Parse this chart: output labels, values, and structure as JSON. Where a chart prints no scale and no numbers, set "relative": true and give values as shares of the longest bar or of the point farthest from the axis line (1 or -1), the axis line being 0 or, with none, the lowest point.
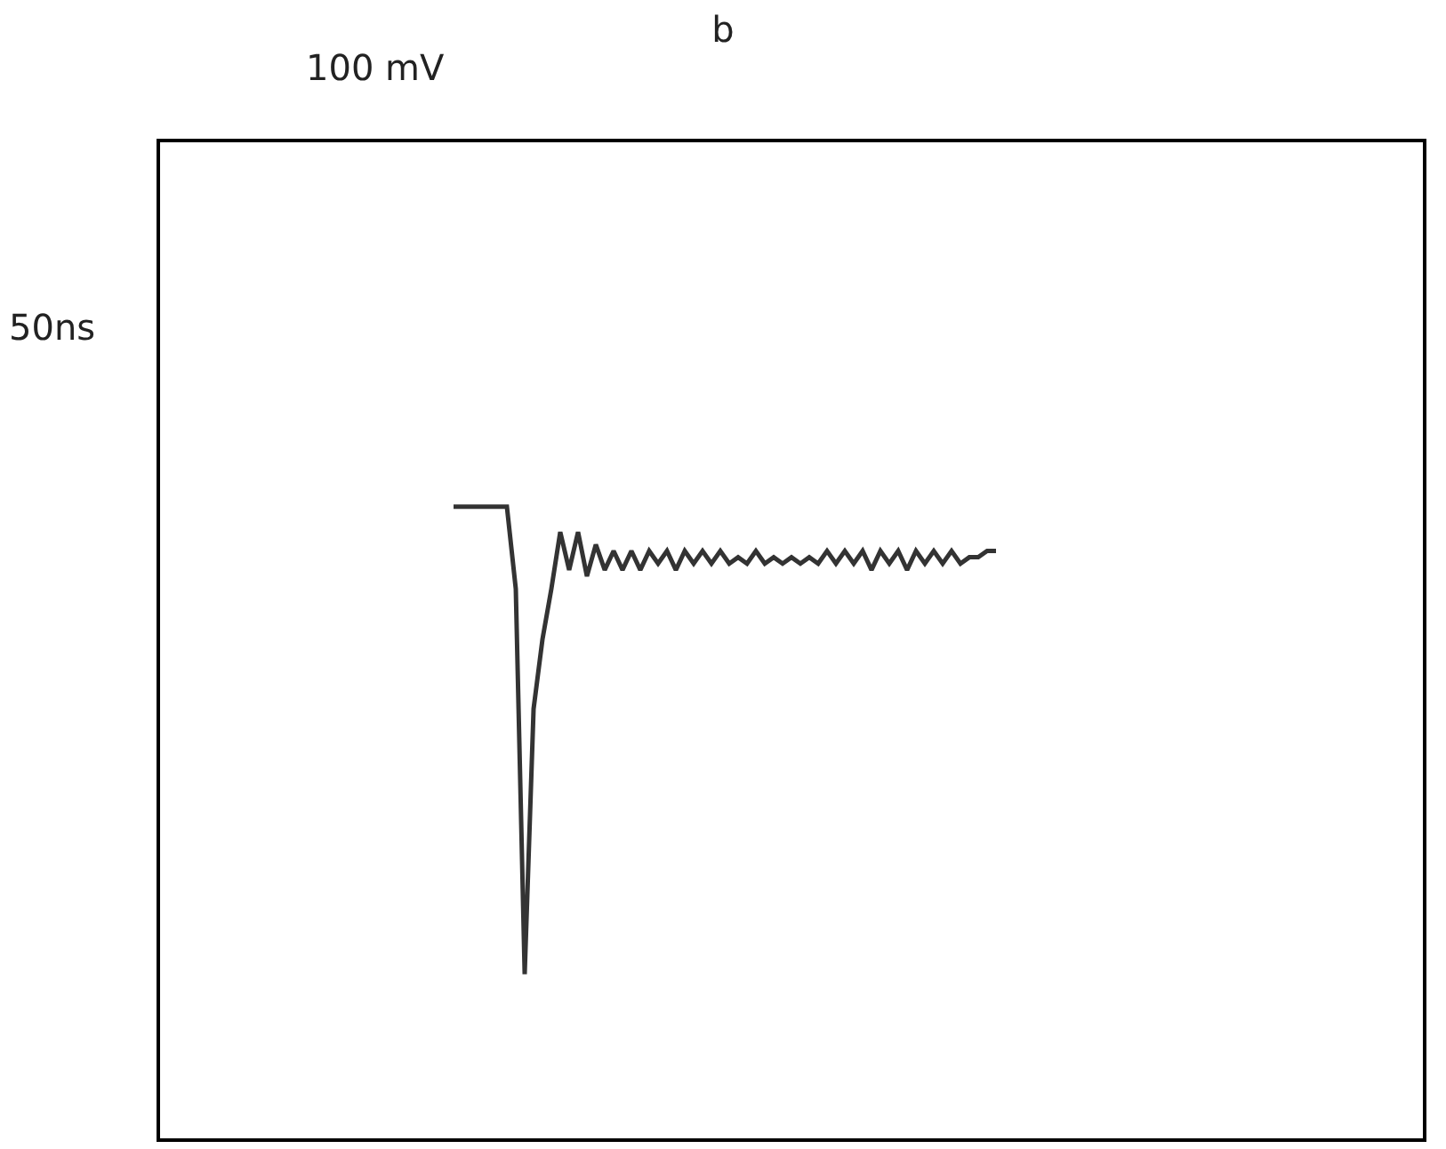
{
  "chart_data": {
    "type": "line",
    "relative": true,
    "title": "b",
    "annotations": [
      "100 mV",
      "50ns"
    ],
    "color": "#333333",
    "categories": [
      null,
      null,
      null,
      null,
      null,
      null,
      null,
      null,
      null,
      null,
      null,
      null,
      null,
      null,
      null,
      null,
      null,
      null,
      null,
      null,
      null,
      null,
      null,
      null,
      null,
      null,
      null,
      null,
      null,
      null,
      null,
      null,
      null,
      null,
      null,
      null,
      null,
      null,
      null,
      null,
      null,
      null,
      null,
      null,
      null,
      null,
      null,
      null,
      null,
      null,
      null,
      null,
      null,
      null,
      null,
      null,
      null,
      null,
      null,
      null,
      null,
      null,
      null,
      null,
      null,
      null,
      null,
      null,
      null,
      null,
      null,
      null,
      null,
      null,
      null,
      null,
      null,
      null,
      null,
      null,
      null,
      null,
      null,
      null,
      null,
      null,
      null,
      null,
      null,
      null,
      null,
      null,
      null,
      null,
      null,
      null,
      null,
      null,
      null,
      null,
      null,
      null,
      null,
      null,
      null,
      null,
      null,
      null,
      null,
      null,
      null,
      null,
      null,
      null,
      null,
      null,
      null,
      null,
      null,
      null,
      null,
      null,
      null,
      null,
      null,
      null,
      null,
      null,
      null,
      null,
      null,
      null,
      null,
      null,
      null,
      null,
      null,
      null,
      null,
      null,
      null,
      null,
      null
    ],
    "values": [
      null,
      null,
      null,
      null,
      null,
      null,
      null,
      null,
      null,
      null,
      null,
      null,
      null,
      null,
      null,
      null,
      null,
      null,
      null,
      null,
      null,
      null,
      null,
      null,
      null,
      null,
      null,
      null,
      null,
      null,
      null,
      null,
      null,
      1.0,
      1.0,
      1.0,
      1.0,
      1.0,
      1.0,
      1.0,
      0.87,
      0.26,
      0.68,
      0.79,
      0.87,
      0.96,
      0.9,
      0.96,
      0.89,
      0.94,
      0.9,
      0.93,
      0.9,
      0.93,
      0.9,
      0.93,
      0.91,
      0.93,
      0.9,
      0.93,
      0.91,
      0.93,
      0.91,
      0.93,
      0.91,
      0.92,
      0.91,
      0.93,
      0.91,
      0.92,
      0.91,
      0.92,
      0.91,
      0.92,
      0.91,
      0.93,
      0.91,
      0.93,
      0.91,
      0.93,
      0.9,
      0.93,
      0.91,
      0.93,
      0.9,
      0.93,
      0.91,
      0.93,
      0.91,
      0.93,
      0.91,
      0.92,
      0.92,
      0.93,
      0.93,
      null,
      null,
      null,
      null,
      null,
      null,
      null,
      null,
      null,
      null,
      null,
      null,
      null,
      null,
      null,
      null,
      null,
      null,
      null,
      null,
      null,
      null,
      null,
      null,
      null,
      null,
      null,
      null,
      null,
      null,
      null,
      null,
      null,
      null,
      null,
      null,
      null,
      null,
      null,
      null,
      null,
      null,
      null,
      null,
      null,
      null,
      null,
      null
    ]
  }
}
